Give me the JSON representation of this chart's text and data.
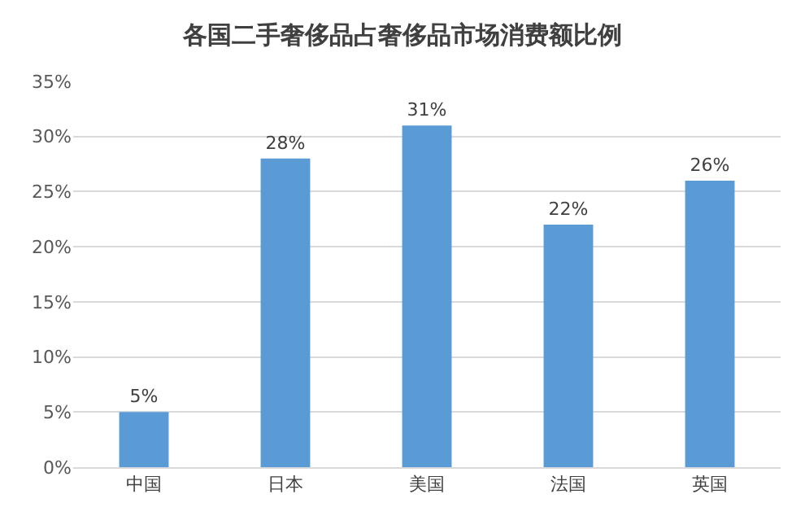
{
  "chart_data": {
    "type": "bar",
    "title": "各国二手奢侈品占奢侈品市场消费额比例",
    "categories": [
      "中国",
      "日本",
      "美国",
      "法国",
      "英国"
    ],
    "values": [
      5,
      28,
      31,
      22,
      26
    ],
    "value_labels": [
      "5%",
      "28%",
      "31%",
      "22%",
      "26%"
    ],
    "color": "#5b9bd5",
    "ylim": [
      0,
      35
    ],
    "yticks": [
      {
        "value": 0,
        "label": "0%"
      },
      {
        "value": 5,
        "label": "5%"
      },
      {
        "value": 10,
        "label": "10%"
      },
      {
        "value": 15,
        "label": "15%"
      },
      {
        "value": 20,
        "label": "20%"
      },
      {
        "value": 25,
        "label": "25%"
      },
      {
        "value": 30,
        "label": "30%"
      },
      {
        "value": 35,
        "label": "35%"
      }
    ],
    "grid": "y"
  }
}
